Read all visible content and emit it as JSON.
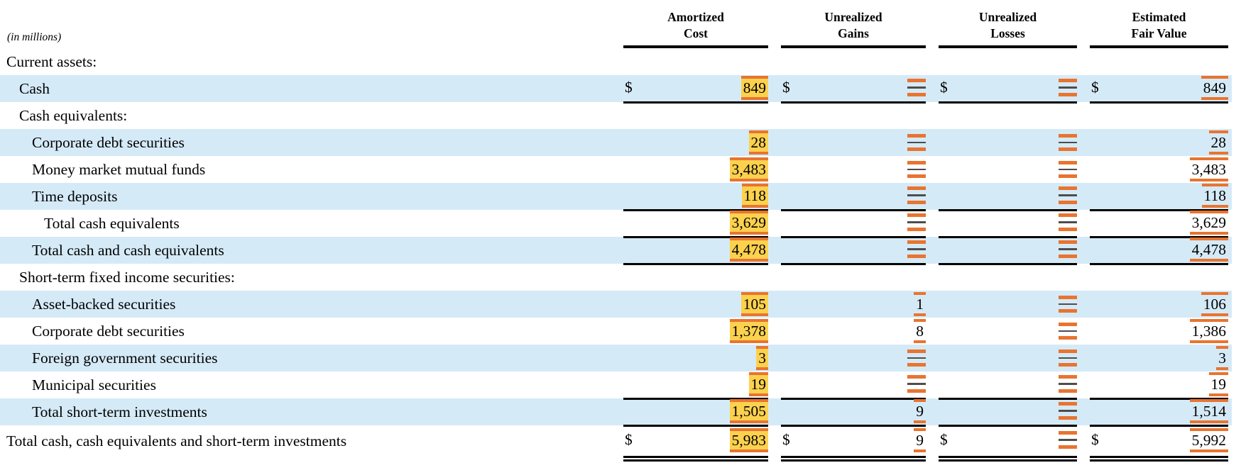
{
  "units_label": "(in millions)",
  "columns": [
    {
      "id": "amortized_cost",
      "line1": "Amortized",
      "line2": "Cost"
    },
    {
      "id": "unrealized_gains",
      "line1": "Unrealized",
      "line2": "Gains"
    },
    {
      "id": "unrealized_losses",
      "line1": "Unrealized",
      "line2": "Losses"
    },
    {
      "id": "estimated_fair_value",
      "line1": "Estimated",
      "line2": "Fair Value"
    }
  ],
  "colors": {
    "row_shade": "#d5eaf7",
    "highlight_fill": "#fcd14e",
    "annotation_orange": "#e87430",
    "dash_gray": "#4d4d4d",
    "rule_black": "#000000"
  },
  "rows": [
    {
      "label": "Current assets:",
      "indent": 0,
      "shaded": false,
      "cells": []
    },
    {
      "label": "Cash",
      "indent": 1,
      "shaded": true,
      "rule_below": true,
      "cells": [
        {
          "text": "849",
          "dollar": true,
          "style": "fill"
        },
        {
          "text": "—",
          "dollar": true,
          "style": "dash"
        },
        {
          "text": "—",
          "dollar": true,
          "style": "dash"
        },
        {
          "text": "849",
          "dollar": true,
          "style": "bars"
        }
      ]
    },
    {
      "label": "Cash equivalents:",
      "indent": 1,
      "shaded": false,
      "cells": []
    },
    {
      "label": "Corporate debt securities",
      "indent": 2,
      "shaded": true,
      "cells": [
        {
          "text": "28",
          "style": "fill"
        },
        {
          "text": "—",
          "style": "dash"
        },
        {
          "text": "—",
          "style": "dash"
        },
        {
          "text": "28",
          "style": "bars"
        }
      ]
    },
    {
      "label": "Money market mutual funds",
      "indent": 2,
      "shaded": false,
      "cells": [
        {
          "text": "3,483",
          "style": "fill"
        },
        {
          "text": "—",
          "style": "dash"
        },
        {
          "text": "—",
          "style": "dash"
        },
        {
          "text": "3,483",
          "style": "bars"
        }
      ]
    },
    {
      "label": "Time deposits",
      "indent": 2,
      "shaded": true,
      "rule_below": true,
      "cells": [
        {
          "text": "118",
          "style": "fill"
        },
        {
          "text": "—",
          "style": "dash"
        },
        {
          "text": "—",
          "style": "dash"
        },
        {
          "text": "118",
          "style": "bars"
        }
      ]
    },
    {
      "label": "Total cash equivalents",
      "indent": 3,
      "shaded": false,
      "rule_below": true,
      "cells": [
        {
          "text": "3,629",
          "style": "fill"
        },
        {
          "text": "—",
          "style": "dash"
        },
        {
          "text": "—",
          "style": "dash"
        },
        {
          "text": "3,629",
          "style": "bars"
        }
      ]
    },
    {
      "label": "Total cash and cash equivalents",
      "indent": 2,
      "shaded": true,
      "rule_below": true,
      "cells": [
        {
          "text": "4,478",
          "style": "fill"
        },
        {
          "text": "—",
          "style": "dash"
        },
        {
          "text": "—",
          "style": "dash"
        },
        {
          "text": "4,478",
          "style": "bars"
        }
      ]
    },
    {
      "label": "Short-term fixed income securities:",
      "indent": 1,
      "shaded": false,
      "cells": []
    },
    {
      "label": "Asset-backed securities",
      "indent": 2,
      "shaded": true,
      "cells": [
        {
          "text": "105",
          "style": "fill"
        },
        {
          "text": "1",
          "style": "bars"
        },
        {
          "text": "—",
          "style": "dash"
        },
        {
          "text": "106",
          "style": "bars"
        }
      ]
    },
    {
      "label": "Corporate debt securities",
      "indent": 2,
      "shaded": false,
      "cells": [
        {
          "text": "1,378",
          "style": "fill"
        },
        {
          "text": "8",
          "style": "bars"
        },
        {
          "text": "—",
          "style": "dash"
        },
        {
          "text": "1,386",
          "style": "bars"
        }
      ]
    },
    {
      "label": "Foreign government securities",
      "indent": 2,
      "shaded": true,
      "cells": [
        {
          "text": "3",
          "style": "fill"
        },
        {
          "text": "—",
          "style": "dash"
        },
        {
          "text": "—",
          "style": "dash"
        },
        {
          "text": "3",
          "style": "bars"
        }
      ]
    },
    {
      "label": "Municipal securities",
      "indent": 2,
      "shaded": false,
      "rule_below": true,
      "cells": [
        {
          "text": "19",
          "style": "fill"
        },
        {
          "text": "—",
          "style": "dash"
        },
        {
          "text": "—",
          "style": "dash"
        },
        {
          "text": "19",
          "style": "bars"
        }
      ]
    },
    {
      "label": "Total short-term investments",
      "indent": 2,
      "shaded": true,
      "rule_below": true,
      "cells": [
        {
          "text": "1,505",
          "style": "fill"
        },
        {
          "text": "9",
          "style": "bars"
        },
        {
          "text": "—",
          "style": "dash"
        },
        {
          "text": "1,514",
          "style": "bars"
        }
      ]
    },
    {
      "label": "Total cash, cash equivalents and short-term investments",
      "indent": 0,
      "shaded": false,
      "double_below": true,
      "cells": [
        {
          "text": "5,983",
          "dollar": true,
          "style": "fill"
        },
        {
          "text": "9",
          "dollar": true,
          "style": "bars"
        },
        {
          "text": "—",
          "dollar": true,
          "style": "dash"
        },
        {
          "text": "5,992",
          "dollar": true,
          "style": "bars"
        }
      ]
    }
  ]
}
